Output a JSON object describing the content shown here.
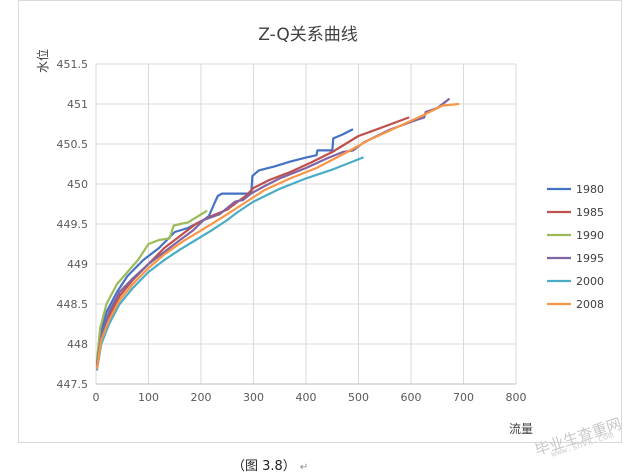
{
  "chart_data": {
    "type": "line",
    "title": "Z-Q关系曲线",
    "xlabel": "流量",
    "ylabel": "水位",
    "xlim": [
      0,
      800
    ],
    "ylim": [
      447.5,
      451.5
    ],
    "x_ticks": [
      "0",
      "100",
      "200",
      "300",
      "400",
      "500",
      "600",
      "700",
      "800"
    ],
    "y_ticks": [
      "447.5",
      "448",
      "448.5",
      "449",
      "449.5",
      "450",
      "450.5",
      "451",
      "451.5"
    ],
    "grid": true,
    "legend_position": "right",
    "series": [
      {
        "name": "1980",
        "color": "#4472C4",
        "points": [
          [
            2,
            447.75
          ],
          [
            8,
            448.1
          ],
          [
            20,
            448.4
          ],
          [
            40,
            448.65
          ],
          [
            60,
            448.85
          ],
          [
            90,
            449.05
          ],
          [
            120,
            449.2
          ],
          [
            150,
            449.4
          ],
          [
            175,
            449.45
          ],
          [
            190,
            449.5
          ],
          [
            205,
            449.55
          ],
          [
            215,
            449.6
          ],
          [
            225,
            449.75
          ],
          [
            232,
            449.85
          ],
          [
            240,
            449.88
          ],
          [
            255,
            449.88
          ],
          [
            290,
            449.88
          ],
          [
            296,
            449.9
          ],
          [
            298,
            450.1
          ],
          [
            310,
            450.17
          ],
          [
            340,
            450.22
          ],
          [
            370,
            450.28
          ],
          [
            400,
            450.33
          ],
          [
            420,
            450.36
          ],
          [
            422,
            450.42
          ],
          [
            450,
            450.42
          ],
          [
            452,
            450.57
          ],
          [
            470,
            450.62
          ],
          [
            488,
            450.68
          ]
        ]
      },
      {
        "name": "1985",
        "color": "#C0504D",
        "points": [
          [
            2,
            447.72
          ],
          [
            10,
            448.05
          ],
          [
            25,
            448.35
          ],
          [
            45,
            448.6
          ],
          [
            70,
            448.8
          ],
          [
            100,
            449.0
          ],
          [
            130,
            449.2
          ],
          [
            160,
            449.35
          ],
          [
            190,
            449.5
          ],
          [
            220,
            449.6
          ],
          [
            250,
            449.68
          ],
          [
            270,
            449.78
          ],
          [
            285,
            449.85
          ],
          [
            300,
            449.95
          ],
          [
            330,
            450.05
          ],
          [
            370,
            450.15
          ],
          [
            410,
            450.27
          ],
          [
            450,
            450.4
          ],
          [
            500,
            450.6
          ],
          [
            550,
            450.72
          ],
          [
            595,
            450.83
          ]
        ]
      },
      {
        "name": "1990",
        "color": "#9BBB59",
        "points": [
          [
            2,
            447.8
          ],
          [
            8,
            448.2
          ],
          [
            20,
            448.5
          ],
          [
            40,
            448.75
          ],
          [
            60,
            448.9
          ],
          [
            80,
            449.05
          ],
          [
            100,
            449.25
          ],
          [
            120,
            449.3
          ],
          [
            140,
            449.32
          ],
          [
            148,
            449.48
          ],
          [
            160,
            449.5
          ],
          [
            175,
            449.52
          ],
          [
            190,
            449.58
          ],
          [
            210,
            449.66
          ]
        ]
      },
      {
        "name": "1995",
        "color": "#8064A2",
        "points": [
          [
            2,
            447.74
          ],
          [
            10,
            448.1
          ],
          [
            25,
            448.4
          ],
          [
            45,
            448.65
          ],
          [
            70,
            448.82
          ],
          [
            100,
            449.0
          ],
          [
            130,
            449.15
          ],
          [
            160,
            449.3
          ],
          [
            185,
            449.42
          ],
          [
            205,
            449.55
          ],
          [
            235,
            449.62
          ],
          [
            265,
            449.78
          ],
          [
            280,
            449.8
          ],
          [
            295,
            449.88
          ],
          [
            320,
            449.97
          ],
          [
            350,
            450.07
          ],
          [
            400,
            450.2
          ],
          [
            440,
            450.32
          ],
          [
            470,
            450.4
          ],
          [
            490,
            450.42
          ],
          [
            510,
            450.52
          ],
          [
            560,
            450.68
          ],
          [
            610,
            450.8
          ],
          [
            625,
            450.83
          ],
          [
            628,
            450.9
          ],
          [
            650,
            450.95
          ],
          [
            672,
            451.06
          ]
        ]
      },
      {
        "name": "2000",
        "color": "#4BACC6",
        "points": [
          [
            2,
            447.68
          ],
          [
            10,
            448.0
          ],
          [
            25,
            448.25
          ],
          [
            45,
            448.5
          ],
          [
            70,
            448.7
          ],
          [
            100,
            448.9
          ],
          [
            130,
            449.05
          ],
          [
            160,
            449.18
          ],
          [
            190,
            449.3
          ],
          [
            220,
            449.42
          ],
          [
            250,
            449.55
          ],
          [
            270,
            449.65
          ],
          [
            300,
            449.78
          ],
          [
            350,
            449.94
          ],
          [
            400,
            450.07
          ],
          [
            450,
            450.18
          ],
          [
            508,
            450.33
          ]
        ]
      },
      {
        "name": "2008",
        "color": "#F79646",
        "points": [
          [
            2,
            447.7
          ],
          [
            10,
            448.05
          ],
          [
            25,
            448.3
          ],
          [
            45,
            448.55
          ],
          [
            70,
            448.75
          ],
          [
            100,
            448.95
          ],
          [
            130,
            449.12
          ],
          [
            165,
            449.28
          ],
          [
            200,
            449.42
          ],
          [
            240,
            449.58
          ],
          [
            280,
            449.75
          ],
          [
            320,
            449.92
          ],
          [
            370,
            450.07
          ],
          [
            420,
            450.2
          ],
          [
            470,
            450.37
          ],
          [
            520,
            450.55
          ],
          [
            570,
            450.7
          ],
          [
            620,
            450.85
          ],
          [
            660,
            450.98
          ],
          [
            690,
            451.0
          ]
        ]
      }
    ]
  },
  "caption": {
    "text": "（图 3.8）",
    "mark": "↵"
  },
  "watermark": {
    "text": "毕业生查重网",
    "sub": "www.shvx.com"
  }
}
